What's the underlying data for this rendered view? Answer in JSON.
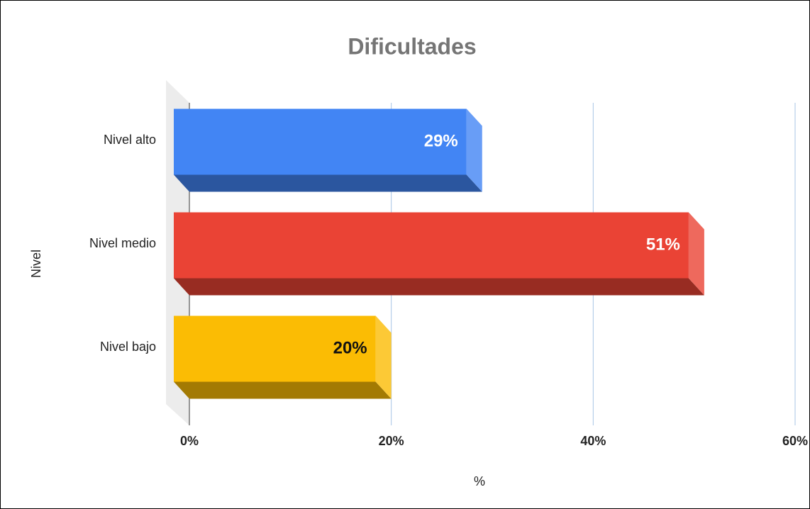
{
  "chart_data": {
    "type": "bar3d_horizontal",
    "title": "Dificultades",
    "categories": [
      "Nivel alto",
      "Nivel medio",
      "Nivel bajo"
    ],
    "values": [
      29,
      51,
      20
    ],
    "value_labels": [
      "29%",
      "51%",
      "20%"
    ],
    "colors": [
      "#4285f4",
      "#ea4335",
      "#fbbc04"
    ],
    "xlabel": "%",
    "ylabel": "Nivel",
    "xlim": [
      0,
      60
    ],
    "xticks": [
      {
        "value": 0,
        "label": "0%"
      },
      {
        "value": 20,
        "label": "20%"
      },
      {
        "value": 40,
        "label": "40%"
      },
      {
        "value": 60,
        "label": "60%"
      }
    ],
    "grid": true
  }
}
